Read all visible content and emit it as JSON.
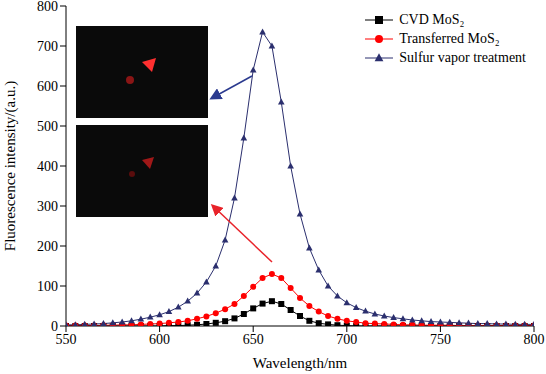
{
  "chart_data": {
    "type": "line",
    "x_label": "Wavelength/nm",
    "y_label": "Fluorescence intensity/(a.u.)",
    "x": [
      550,
      555,
      560,
      565,
      570,
      575,
      580,
      585,
      590,
      595,
      600,
      605,
      610,
      615,
      620,
      625,
      630,
      635,
      640,
      645,
      650,
      655,
      660,
      665,
      670,
      675,
      680,
      685,
      690,
      695,
      700,
      705,
      710,
      715,
      720,
      725,
      730,
      735,
      740,
      745,
      750,
      755,
      760,
      765,
      770,
      775,
      780,
      785,
      790,
      795,
      800
    ],
    "xlim": [
      550,
      800
    ],
    "xticks": [
      550,
      600,
      650,
      700,
      750,
      800
    ],
    "ylim": [
      0,
      800
    ],
    "yticks": [
      0,
      100,
      200,
      300,
      400,
      500,
      600,
      700,
      800
    ],
    "grid": false,
    "legend": "upper right",
    "series": [
      {
        "name": "CVD MoS₂",
        "color": "#000000",
        "marker": "square",
        "line_style": "solid",
        "values": [
          0,
          0,
          0,
          0,
          0,
          0,
          0,
          0,
          0,
          0,
          0,
          1,
          1,
          2,
          3,
          5,
          8,
          12,
          19,
          30,
          44,
          56,
          62,
          55,
          40,
          25,
          13,
          7,
          4,
          2,
          1,
          0,
          0,
          0,
          0,
          0,
          0,
          0,
          0,
          0,
          0,
          0,
          0,
          0,
          0,
          0,
          0,
          0,
          0,
          0,
          0
        ]
      },
      {
        "name": "Transferred MoS₂",
        "color": "#ff0000",
        "marker": "circle",
        "line_style": "solid",
        "values": [
          1,
          1,
          1,
          1,
          2,
          2,
          3,
          3,
          4,
          5,
          6,
          8,
          10,
          13,
          18,
          24,
          32,
          42,
          55,
          75,
          98,
          120,
          130,
          120,
          95,
          70,
          50,
          36,
          25,
          18,
          13,
          10,
          7,
          6,
          5,
          4,
          3,
          3,
          2,
          2,
          2,
          2,
          1,
          1,
          1,
          1,
          1,
          1,
          1,
          1,
          1
        ]
      },
      {
        "name": "Sulfur vapor treatment",
        "color": "#2b2f6e",
        "marker": "triangle",
        "line_style": "solid",
        "values": [
          3,
          3,
          4,
          5,
          6,
          8,
          10,
          13,
          17,
          22,
          28,
          36,
          47,
          62,
          82,
          110,
          150,
          215,
          320,
          470,
          640,
          735,
          700,
          560,
          400,
          280,
          195,
          140,
          100,
          75,
          58,
          46,
          37,
          30,
          25,
          21,
          18,
          15,
          13,
          11,
          10,
          9,
          8,
          7,
          6,
          6,
          5,
          5,
          4,
          4,
          4
        ]
      }
    ]
  }
}
